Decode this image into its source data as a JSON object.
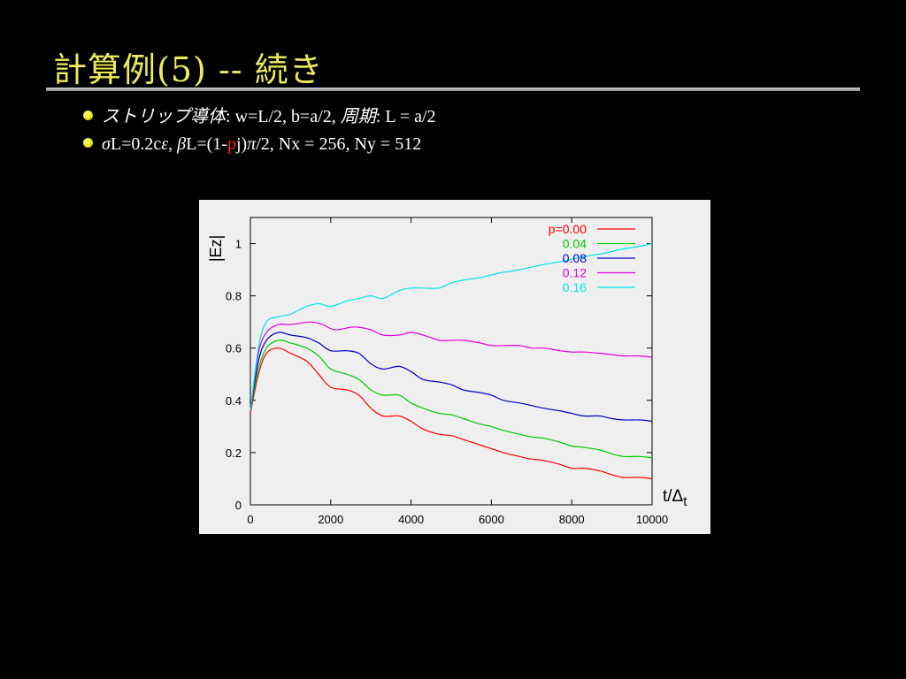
{
  "slide": {
    "title": "計算例(5)  --  続き",
    "bullets": [
      {
        "jp1": "ストリップ導体",
        "colon1": ": ",
        "params": "w=L/2,  b=a/2,  ",
        "jp2": "周期",
        "colon2": ": ",
        "period": "L = a/2"
      },
      {
        "sigma": "σ",
        "part1": "L=0.2c",
        "epsilon": "ε",
        "comma": ", ",
        "beta": "β",
        "part2": "L=(1-",
        "p": "p",
        "part3": "j)",
        "pi": "π",
        "part4": "/2,   Nx = 256,  Ny = 512"
      }
    ]
  },
  "chart_data": {
    "type": "line",
    "xlabel": "t/Δt",
    "xlabel_main": "t/Δ",
    "xlabel_sub": "t",
    "ylabel": "|Ez|",
    "xlim": [
      0,
      10000
    ],
    "ylim": [
      0,
      1.1
    ],
    "xticks": [
      0,
      2000,
      4000,
      6000,
      8000,
      10000
    ],
    "yticks": [
      0,
      0.2,
      0.4,
      0.6,
      0.8,
      1
    ],
    "grid": false,
    "legend_position": "top-right",
    "series": [
      {
        "name": "p=0.00",
        "color": "#ff0000",
        "x": [
          0,
          200,
          400,
          700,
          1000,
          1400,
          1700,
          2000,
          2400,
          2700,
          3000,
          3300,
          3700,
          4000,
          4300,
          4700,
          5000,
          5300,
          5700,
          6000,
          6300,
          6700,
          7000,
          7300,
          7700,
          8000,
          8300,
          8700,
          9000,
          9300,
          9700,
          10000
        ],
        "y": [
          0.35,
          0.5,
          0.58,
          0.6,
          0.58,
          0.55,
          0.5,
          0.45,
          0.44,
          0.42,
          0.37,
          0.34,
          0.34,
          0.32,
          0.29,
          0.27,
          0.265,
          0.25,
          0.23,
          0.215,
          0.2,
          0.185,
          0.175,
          0.17,
          0.155,
          0.14,
          0.14,
          0.13,
          0.115,
          0.105,
          0.105,
          0.1
        ]
      },
      {
        "name": "0.04",
        "color": "#00cc00",
        "x": [
          0,
          200,
          400,
          700,
          1000,
          1400,
          1700,
          2000,
          2400,
          2700,
          3000,
          3300,
          3700,
          4000,
          4300,
          4700,
          5000,
          5300,
          5700,
          6000,
          6300,
          6700,
          7000,
          7300,
          7700,
          8000,
          8300,
          8700,
          9000,
          9300,
          9700,
          10000
        ],
        "y": [
          0.36,
          0.52,
          0.6,
          0.63,
          0.62,
          0.6,
          0.57,
          0.52,
          0.5,
          0.48,
          0.44,
          0.42,
          0.42,
          0.39,
          0.37,
          0.35,
          0.345,
          0.33,
          0.31,
          0.3,
          0.285,
          0.27,
          0.26,
          0.255,
          0.24,
          0.225,
          0.22,
          0.21,
          0.195,
          0.185,
          0.185,
          0.18
        ]
      },
      {
        "name": "0.08",
        "color": "#0000cc",
        "x": [
          0,
          200,
          400,
          700,
          1000,
          1400,
          1700,
          2000,
          2400,
          2700,
          3000,
          3300,
          3700,
          4000,
          4300,
          4700,
          5000,
          5300,
          5700,
          6000,
          6300,
          6700,
          7000,
          7300,
          7700,
          8000,
          8300,
          8700,
          9000,
          9300,
          9700,
          10000
        ],
        "y": [
          0.36,
          0.55,
          0.63,
          0.66,
          0.65,
          0.64,
          0.62,
          0.59,
          0.59,
          0.58,
          0.54,
          0.52,
          0.53,
          0.51,
          0.48,
          0.47,
          0.46,
          0.44,
          0.43,
          0.42,
          0.4,
          0.39,
          0.38,
          0.37,
          0.36,
          0.35,
          0.34,
          0.34,
          0.33,
          0.325,
          0.325,
          0.32
        ]
      },
      {
        "name": "0.12",
        "color": "#e000e0",
        "x": [
          0,
          200,
          400,
          700,
          1000,
          1500,
          1800,
          2100,
          2500,
          2700,
          3000,
          3300,
          3700,
          4000,
          4300,
          4700,
          5000,
          5300,
          5700,
          6000,
          6300,
          6700,
          7000,
          7300,
          7700,
          8000,
          8300,
          8700,
          9000,
          9300,
          9700,
          10000
        ],
        "y": [
          0.36,
          0.58,
          0.66,
          0.69,
          0.69,
          0.7,
          0.69,
          0.67,
          0.68,
          0.68,
          0.67,
          0.65,
          0.65,
          0.66,
          0.65,
          0.63,
          0.63,
          0.63,
          0.62,
          0.61,
          0.61,
          0.61,
          0.6,
          0.6,
          0.59,
          0.585,
          0.585,
          0.58,
          0.575,
          0.57,
          0.57,
          0.565
        ]
      },
      {
        "name": "0.16",
        "color": "#00e5e5",
        "x": [
          0,
          200,
          400,
          700,
          1000,
          1400,
          1700,
          2000,
          2400,
          2700,
          3000,
          3300,
          3700,
          4000,
          4300,
          4700,
          5000,
          5300,
          5700,
          6000,
          6300,
          6700,
          7000,
          7300,
          7700,
          8000,
          8300,
          8700,
          9000,
          9300,
          9700,
          10000
        ],
        "y": [
          0.36,
          0.6,
          0.7,
          0.72,
          0.73,
          0.76,
          0.77,
          0.76,
          0.78,
          0.79,
          0.8,
          0.79,
          0.82,
          0.83,
          0.83,
          0.83,
          0.85,
          0.86,
          0.87,
          0.88,
          0.89,
          0.9,
          0.91,
          0.92,
          0.93,
          0.94,
          0.95,
          0.96,
          0.97,
          0.98,
          0.99,
          1.0
        ]
      }
    ]
  }
}
